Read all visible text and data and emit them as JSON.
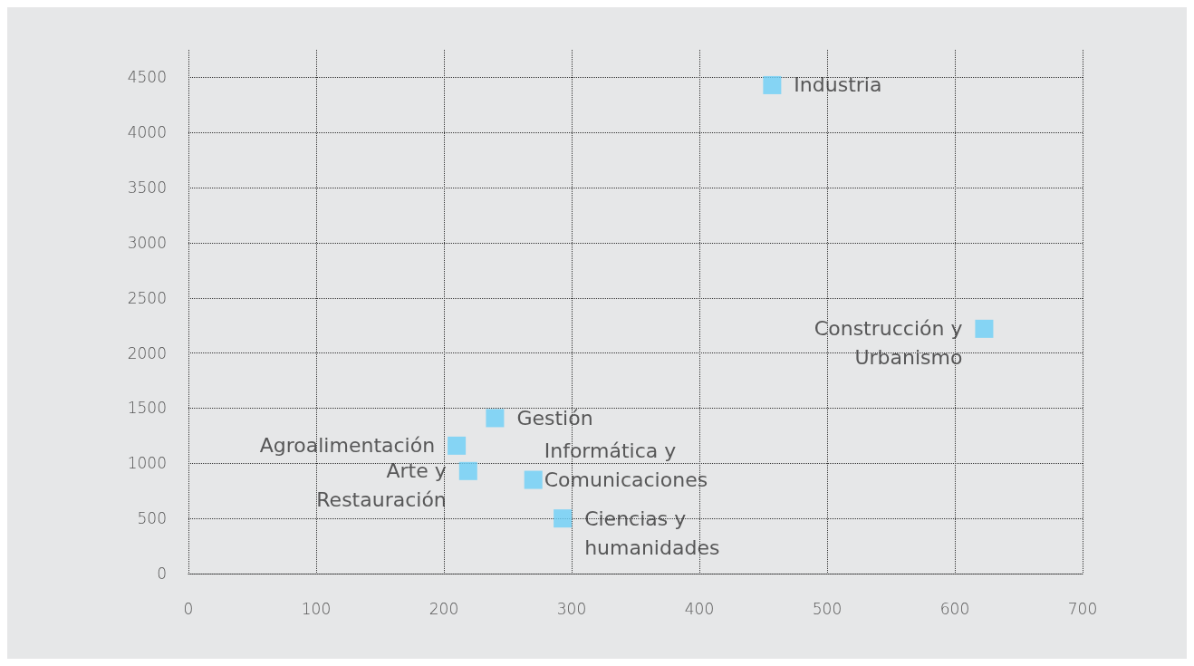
{
  "chart_data": {
    "type": "scatter",
    "x": [
      457,
      623,
      240,
      210,
      219,
      270,
      293
    ],
    "values": [
      4430,
      2220,
      1410,
      1160,
      930,
      850,
      500
    ],
    "color": "#6dcff6",
    "marker": "square",
    "grid": true,
    "line_style": "dotted",
    "xlim": [
      0,
      700
    ],
    "xticks": [
      0,
      100,
      200,
      300,
      400,
      500,
      600,
      700
    ],
    "ylim": [
      0,
      4750
    ],
    "yticks": [
      0,
      500,
      1000,
      1500,
      2000,
      2500,
      3000,
      3500,
      4000,
      4500
    ],
    "annotations": [
      {
        "text": "Industria",
        "x": 457,
        "y": 4430
      },
      {
        "text": "Construcción y\nUrbanismo",
        "x": 623,
        "y": 2220
      },
      {
        "text": "Gestión",
        "x": 240,
        "y": 1410
      },
      {
        "text": "Agroalimentación",
        "x": 210,
        "y": 1160
      },
      {
        "text": "Arte y\nRestauración",
        "x": 219,
        "y": 930
      },
      {
        "text": "Informática y\nComunicaciones",
        "x": 270,
        "y": 850
      },
      {
        "text": "Ciencias y\nhumanidades",
        "x": 293,
        "y": 500
      }
    ]
  }
}
